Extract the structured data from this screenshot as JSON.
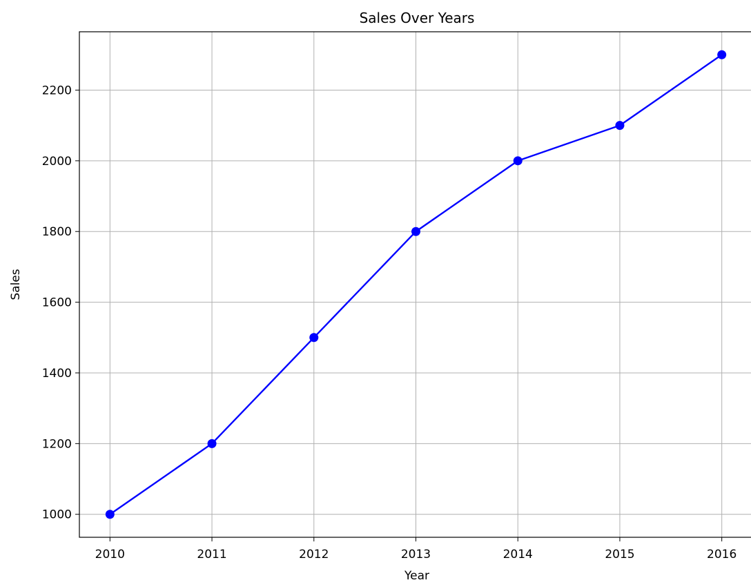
{
  "chart_data": {
    "type": "line",
    "title": "Sales Over Years",
    "xlabel": "Year",
    "ylabel": "Sales",
    "x": [
      2010,
      2011,
      2012,
      2013,
      2014,
      2015,
      2016
    ],
    "x_tick_labels": [
      "2010",
      "2011",
      "2012",
      "2013",
      "2014",
      "2015",
      "2016"
    ],
    "y_ticks": [
      1000,
      1200,
      1400,
      1600,
      1800,
      2000,
      2200
    ],
    "y_tick_labels": [
      "1000",
      "1200",
      "1400",
      "1600",
      "1800",
      "2000",
      "2200"
    ],
    "xlim": [
      2009.7,
      2016.3
    ],
    "ylim": [
      935,
      2365
    ],
    "grid": true,
    "legend": "none",
    "series": [
      {
        "values": [
          1000,
          1200,
          1500,
          1800,
          2000,
          2100,
          2300
        ],
        "color": "#0000ff",
        "marker": "circle"
      }
    ]
  }
}
